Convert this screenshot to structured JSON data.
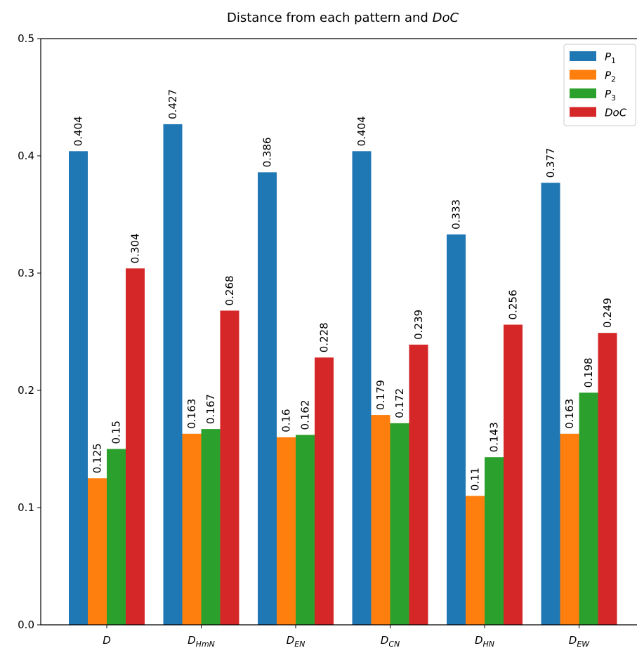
{
  "chart_data": {
    "type": "bar",
    "title_parts": [
      "Distance from each pattern and ",
      "DoC"
    ],
    "xlabel": "",
    "ylabel": "",
    "ylim": [
      0,
      0.5
    ],
    "yticks": [
      "0.0",
      "0.1",
      "0.2",
      "0.3",
      "0.4",
      "0.5"
    ],
    "ytick_values": [
      0,
      0.1,
      0.2,
      0.3,
      0.4,
      0.5
    ],
    "categories": [
      {
        "base": "D",
        "sub": ""
      },
      {
        "base": "D",
        "sub": "HmN"
      },
      {
        "base": "D",
        "sub": "EN"
      },
      {
        "base": "D",
        "sub": "CN"
      },
      {
        "base": "D",
        "sub": "HN"
      },
      {
        "base": "D",
        "sub": "EW"
      }
    ],
    "series": [
      {
        "name": "P",
        "sub": "1",
        "color": "#1f77b4",
        "values": [
          0.404,
          0.427,
          0.386,
          0.404,
          0.333,
          0.377
        ],
        "labels": [
          "0.404",
          "0.427",
          "0.386",
          "0.404",
          "0.333",
          "0.377"
        ]
      },
      {
        "name": "P",
        "sub": "2",
        "color": "#ff7f0e",
        "values": [
          0.125,
          0.163,
          0.16,
          0.179,
          0.11,
          0.163
        ],
        "labels": [
          "0.125",
          "0.163",
          "0.16",
          "0.179",
          "0.11",
          "0.163"
        ]
      },
      {
        "name": "P",
        "sub": "3",
        "color": "#2ca02c",
        "values": [
          0.15,
          0.167,
          0.162,
          0.172,
          0.143,
          0.198
        ],
        "labels": [
          "0.15",
          "0.167",
          "0.162",
          "0.172",
          "0.143",
          "0.198"
        ]
      },
      {
        "name": "DoC",
        "sub": "",
        "color": "#d62728",
        "values": [
          0.304,
          0.268,
          0.228,
          0.239,
          0.256,
          0.249
        ],
        "labels": [
          "0.304",
          "0.268",
          "0.228",
          "0.239",
          "0.256",
          "0.249"
        ]
      }
    ],
    "legend_position": "top-right",
    "grid": false
  }
}
